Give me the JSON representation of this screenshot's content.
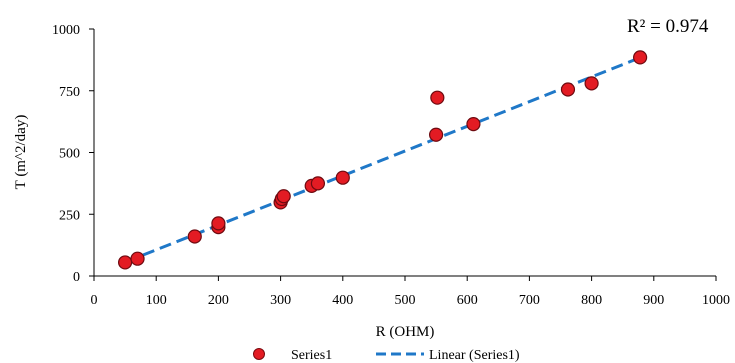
{
  "chart_data": {
    "type": "scatter",
    "title": "",
    "xlabel": "R (OHM)",
    "ylabel": "T (m^2/day)",
    "xlim": [
      0,
      1000
    ],
    "ylim": [
      0,
      1000
    ],
    "xticks": [
      0,
      100,
      200,
      300,
      400,
      500,
      600,
      700,
      800,
      900,
      1000
    ],
    "yticks": [
      0,
      250,
      500,
      750,
      1000
    ],
    "x_tick_labels": [
      "0",
      "100",
      "200",
      "300",
      "400",
      "500",
      "600",
      "700",
      "800",
      "900",
      "1000"
    ],
    "y_tick_labels": [
      "0",
      "250",
      "500",
      "750",
      "1000"
    ],
    "grid": false,
    "legend_position": "bottom",
    "series": [
      {
        "name": "Series1",
        "marker_color": "#e31b23",
        "points": [
          {
            "x": 50,
            "y": 55
          },
          {
            "x": 70,
            "y": 70
          },
          {
            "x": 162,
            "y": 160
          },
          {
            "x": 200,
            "y": 198
          },
          {
            "x": 200,
            "y": 213
          },
          {
            "x": 300,
            "y": 298
          },
          {
            "x": 302,
            "y": 312
          },
          {
            "x": 305,
            "y": 323
          },
          {
            "x": 350,
            "y": 365
          },
          {
            "x": 360,
            "y": 375
          },
          {
            "x": 400,
            "y": 398
          },
          {
            "x": 550,
            "y": 572
          },
          {
            "x": 552,
            "y": 722
          },
          {
            "x": 610,
            "y": 615
          },
          {
            "x": 762,
            "y": 755
          },
          {
            "x": 800,
            "y": 780
          },
          {
            "x": 878,
            "y": 885
          }
        ]
      }
    ],
    "trendline": {
      "name": "Linear (Series1)",
      "type": "linear",
      "color": "#1f78c8",
      "x_start": 52,
      "y_start": 58,
      "x_end": 878,
      "y_end": 884,
      "annotation": "R² = 0.974"
    }
  },
  "legend": {
    "series_label": "Series1",
    "trend_label": "Linear (Series1)"
  }
}
